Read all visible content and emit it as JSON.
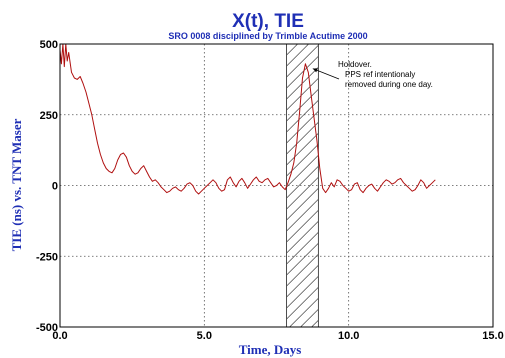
{
  "chart_data": {
    "type": "line",
    "title": "X(t), TIE",
    "subtitle": "SRO 0008 disciplined by Trimble Acutime 2000",
    "xlabel": "Time, Days",
    "ylabel": "TIE (ns) vs. TNT Maser",
    "xlim": [
      0,
      15
    ],
    "ylim": [
      -500,
      500
    ],
    "x_ticks": [
      0,
      5,
      10,
      15
    ],
    "x_tick_labels": [
      "0.0",
      "5.0",
      "10.0",
      "15.0"
    ],
    "y_ticks": [
      -500,
      -250,
      0,
      250,
      500
    ],
    "y_tick_labels": [
      "-500",
      "-250",
      "0",
      "250",
      "500"
    ],
    "grid": true,
    "line_color": "#b01010",
    "title_color": "#1f2fb5",
    "annotation": {
      "lines": [
        "Holdover.",
        "PPS ref intentionaly",
        "removed during one day."
      ],
      "arrow_to": [
        8.55,
        420
      ]
    },
    "holdover_region": [
      7.85,
      8.95
    ],
    "series": [
      {
        "x": [
          0.0,
          0.05,
          0.1,
          0.15,
          0.2,
          0.25,
          0.3,
          0.4,
          0.5,
          0.6,
          0.7,
          0.8,
          0.9,
          1.0,
          1.1,
          1.2,
          1.3,
          1.4,
          1.5,
          1.6,
          1.7,
          1.8,
          1.9,
          2.0,
          2.1,
          2.2,
          2.3,
          2.4,
          2.5,
          2.6,
          2.7,
          2.8,
          2.9,
          3.0,
          3.1,
          3.2,
          3.3,
          3.4,
          3.5,
          3.6,
          3.7,
          3.8,
          3.9,
          4.0,
          4.1,
          4.2,
          4.3,
          4.4,
          4.5,
          4.6,
          4.7,
          4.8,
          4.9,
          5.0,
          5.1,
          5.2,
          5.3,
          5.4,
          5.5,
          5.6,
          5.7,
          5.8,
          5.9,
          6.0,
          6.1,
          6.2,
          6.3,
          6.4,
          6.5,
          6.6,
          6.7,
          6.8,
          6.9,
          7.0,
          7.1,
          7.2,
          7.3,
          7.4,
          7.5,
          7.6,
          7.7,
          7.8,
          7.9,
          8.0,
          8.1,
          8.2,
          8.3,
          8.4,
          8.5,
          8.6,
          8.7,
          8.8,
          8.9,
          9.0,
          9.1,
          9.2,
          9.3,
          9.4,
          9.5,
          9.6,
          9.7,
          9.8,
          9.9,
          10.0,
          10.1,
          10.2,
          10.3,
          10.4,
          10.5,
          10.6,
          10.7,
          10.8,
          10.9,
          11.0,
          11.1,
          11.2,
          11.3,
          11.4,
          11.5,
          11.6,
          11.7,
          11.8,
          11.9,
          12.0,
          12.1,
          12.2,
          12.3,
          12.4,
          12.5,
          12.6,
          12.7,
          12.8,
          12.9,
          13.0
        ],
        "values": [
          480,
          430,
          500,
          420,
          500,
          440,
          470,
          400,
          380,
          375,
          385,
          360,
          330,
          290,
          250,
          200,
          150,
          110,
          80,
          60,
          50,
          45,
          60,
          90,
          110,
          115,
          100,
          70,
          50,
          40,
          45,
          60,
          70,
          50,
          30,
          15,
          20,
          10,
          -5,
          -15,
          -25,
          -20,
          -10,
          -5,
          -15,
          -20,
          -10,
          5,
          10,
          0,
          -20,
          -30,
          -20,
          -10,
          0,
          10,
          20,
          10,
          -10,
          -20,
          -15,
          20,
          30,
          10,
          -5,
          15,
          25,
          10,
          -10,
          5,
          20,
          30,
          15,
          10,
          20,
          25,
          10,
          -5,
          0,
          10,
          -5,
          -15,
          10,
          40,
          80,
          150,
          260,
          380,
          430,
          400,
          320,
          240,
          160,
          60,
          -10,
          -25,
          -10,
          10,
          -5,
          20,
          15,
          0,
          -10,
          -20,
          -15,
          5,
          10,
          -15,
          -25,
          -10,
          0,
          5,
          -10,
          -20,
          -5,
          10,
          20,
          15,
          5,
          10,
          20,
          25,
          10,
          0,
          -10,
          -20,
          -15,
          0,
          20,
          10,
          -10,
          0,
          10,
          20
        ]
      }
    ]
  }
}
